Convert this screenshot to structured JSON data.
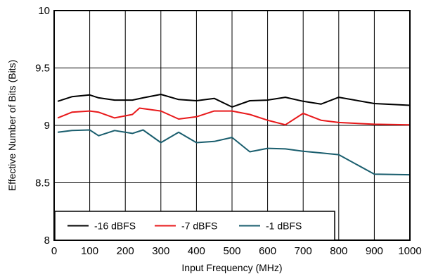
{
  "chart_data": {
    "type": "line",
    "xlabel": "Input Frequency (MHz)",
    "ylabel": "Effective Number of Bits (Bits)",
    "xlim": [
      0,
      1000
    ],
    "ylim": [
      8,
      10
    ],
    "x_ticks": [
      0,
      100,
      200,
      300,
      400,
      500,
      600,
      700,
      800,
      900,
      1000
    ],
    "y_ticks": [
      8,
      8.5,
      9,
      9.5,
      10
    ],
    "y_tick_labels": [
      "8",
      "8.5",
      "9",
      "9.5",
      "10"
    ],
    "grid": "vertical lines at every 100 MHz, horizontal lines at 8.5, 9, 9.5",
    "legend_position": "bottom-left",
    "series": [
      {
        "name": "-16 dBFS",
        "color": "#000000",
        "x": [
          10,
          50,
          100,
          125,
          170,
          220,
          250,
          300,
          350,
          400,
          450,
          500,
          550,
          600,
          650,
          700,
          750,
          800,
          900,
          1000
        ],
        "y": [
          9.21,
          9.25,
          9.265,
          9.24,
          9.22,
          9.22,
          9.24,
          9.27,
          9.225,
          9.215,
          9.235,
          9.16,
          9.215,
          9.22,
          9.245,
          9.21,
          9.185,
          9.245,
          9.19,
          9.175
        ]
      },
      {
        "name": "-7 dBFS",
        "color": "#e8191b",
        "x": [
          10,
          50,
          100,
          125,
          170,
          220,
          240,
          300,
          350,
          400,
          450,
          500,
          550,
          600,
          650,
          700,
          750,
          800,
          900,
          1000
        ],
        "y": [
          9.065,
          9.115,
          9.125,
          9.115,
          9.065,
          9.095,
          9.15,
          9.125,
          9.055,
          9.075,
          9.125,
          9.125,
          9.095,
          9.045,
          9.005,
          9.105,
          9.045,
          9.025,
          9.01,
          9.005
        ]
      },
      {
        "name": "-1 dBFS",
        "color": "#1a5e6e",
        "x": [
          10,
          50,
          100,
          125,
          170,
          220,
          250,
          300,
          350,
          400,
          450,
          500,
          550,
          600,
          650,
          700,
          750,
          800,
          900,
          1000
        ],
        "y": [
          8.94,
          8.955,
          8.96,
          8.91,
          8.955,
          8.93,
          8.96,
          8.85,
          8.94,
          8.85,
          8.86,
          8.895,
          8.77,
          8.8,
          8.795,
          8.775,
          8.76,
          8.745,
          8.575,
          8.57
        ]
      }
    ]
  }
}
